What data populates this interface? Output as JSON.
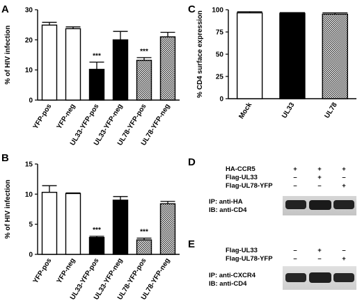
{
  "panels": {
    "a": {
      "letter": "A"
    },
    "b": {
      "letter": "B"
    },
    "c": {
      "letter": "C"
    },
    "d": {
      "letter": "D",
      "rows": [
        {
          "label": "HA-CCR5",
          "marks": [
            "+",
            "+",
            "+"
          ]
        },
        {
          "label": "Flag-UL33",
          "marks": [
            "–",
            "+",
            "–"
          ]
        },
        {
          "label": "Flag-UL78-YFP",
          "marks": [
            "–",
            "–",
            "+"
          ]
        }
      ],
      "blot_labels": [
        "IP: anti-HA",
        "IB: anti-CD4"
      ]
    },
    "e": {
      "letter": "E",
      "rows": [
        {
          "label": "Flag-UL33",
          "marks": [
            "–",
            "+",
            "–"
          ]
        },
        {
          "label": "Flag-UL78-YFP",
          "marks": [
            "–",
            "–",
            "+"
          ]
        }
      ],
      "blot_labels": [
        "IP: anti-CXCR4",
        "IB: anti-CD4"
      ]
    }
  },
  "chart_data": [
    {
      "panel": "A",
      "type": "bar",
      "categories": [
        "YFP-pos",
        "YFP-neg",
        "UL33-YFP-pos",
        "UL33-YFP-neg",
        "UL78-YFP-pos",
        "UL78-YFP-neg"
      ],
      "values": [
        24.9,
        23.7,
        10.2,
        20.0,
        13.2,
        21.0
      ],
      "errors": [
        0.9,
        0.6,
        2.4,
        2.8,
        0.9,
        1.5
      ],
      "fills": [
        "white",
        "white",
        "black",
        "black",
        "checker",
        "checker"
      ],
      "annotations": [
        "",
        "",
        "***",
        "",
        "***",
        ""
      ],
      "ylabel": "% of HIV infection",
      "ylim": [
        0,
        30
      ],
      "yticks": [
        0,
        10,
        20,
        30
      ]
    },
    {
      "panel": "B",
      "type": "bar",
      "categories": [
        "YFP-pos",
        "YFP-neg",
        "UL33-YFP-pos",
        "UL33-YFP-neg",
        "UL78-YFP-pos",
        "UL78-YFP-neg"
      ],
      "values": [
        10.3,
        10.1,
        2.8,
        9.0,
        2.4,
        8.4
      ],
      "errors": [
        1.1,
        0.1,
        0.2,
        0.6,
        0.3,
        0.4
      ],
      "fills": [
        "white",
        "white",
        "black",
        "black",
        "checker",
        "checker"
      ],
      "annotations": [
        "",
        "",
        "***",
        "",
        "***",
        ""
      ],
      "ylabel": "% of HIV infection",
      "ylim": [
        0,
        15
      ],
      "yticks": [
        0,
        5,
        10,
        15
      ]
    },
    {
      "panel": "C",
      "type": "bar",
      "categories": [
        "Mock",
        "UL33",
        "UL78"
      ],
      "values": [
        96.5,
        96.0,
        95.0
      ],
      "errors": [
        1.2,
        0.8,
        1.5
      ],
      "fills": [
        "white",
        "black",
        "checker"
      ],
      "annotations": [
        "",
        "",
        ""
      ],
      "ylabel": "% CD4 surface expression",
      "ylim": [
        0,
        100
      ],
      "yticks": [
        0,
        25,
        50,
        75,
        100
      ]
    }
  ]
}
